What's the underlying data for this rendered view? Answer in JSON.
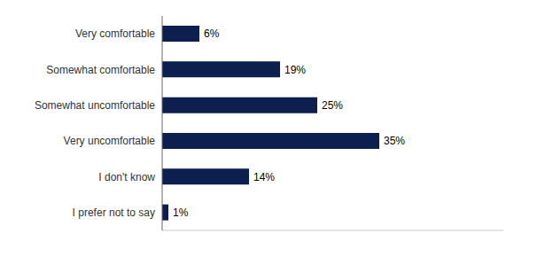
{
  "chart_data": {
    "type": "bar",
    "orientation": "horizontal",
    "categories": [
      "Very comfortable",
      "Somewhat comfortable",
      "Somewhat uncomfortable",
      "Very uncomfortable",
      "I don't know",
      "I prefer not to say"
    ],
    "values": [
      6,
      19,
      25,
      35,
      14,
      1
    ],
    "value_labels": [
      "6%",
      "19%",
      "25%",
      "35%",
      "14%",
      "1%"
    ],
    "data_labels": true,
    "color": "#0d1f4e",
    "xlim": [
      0,
      55
    ],
    "grid": false,
    "tick_labels": "y"
  }
}
